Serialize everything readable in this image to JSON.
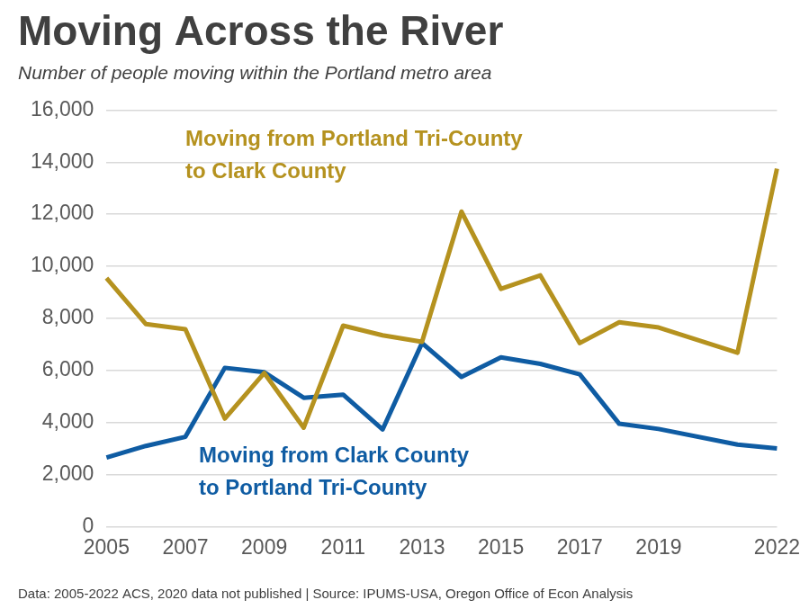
{
  "chart_data": {
    "type": "line",
    "title": "Moving Across the River",
    "subtitle": "Number of people moving within the Portland metro area",
    "caption": "Data: 2005-2022 ACS, 2020 data not published | Source: IPUMS-USA, Oregon Office of Econ Analysis",
    "categories": [
      "2005",
      null,
      "2007",
      null,
      "2009",
      null,
      "2011",
      null,
      "2013",
      null,
      "2015",
      null,
      "2017",
      null,
      "2019",
      null,
      null,
      "2022"
    ],
    "series": [
      {
        "name": "Moving from Portland Tri-County\nto Clark County",
        "color": "#B5921F",
        "values": [
          9550,
          7780,
          7580,
          4150,
          5900,
          3800,
          7720,
          7350,
          7100,
          12100,
          9130,
          9650,
          7050,
          7850,
          7650,
          null,
          6680,
          13750
        ]
      },
      {
        "name": "Moving from Clark County\nto Portland Tri-County",
        "color": "#0F5CA3",
        "values": [
          2650,
          3100,
          3450,
          6100,
          5930,
          4950,
          5070,
          3730,
          7050,
          5750,
          6500,
          6250,
          5850,
          3950,
          3750,
          null,
          3150,
          3000
        ]
      }
    ],
    "ylim": [
      0,
      16000
    ],
    "yticks": [
      0,
      {
        "value": 2000,
        "label": "2,000"
      },
      {
        "value": 4000,
        "label": "4,000"
      },
      {
        "value": 6000,
        "label": "6,000"
      },
      {
        "value": 8000,
        "label": "8,000"
      },
      {
        "value": 10000,
        "label": "10,000"
      },
      {
        "value": 12000,
        "label": "12,000"
      },
      {
        "value": 14000,
        "label": "14,000"
      },
      {
        "value": 16000,
        "label": "16,000"
      }
    ],
    "grid": true
  }
}
